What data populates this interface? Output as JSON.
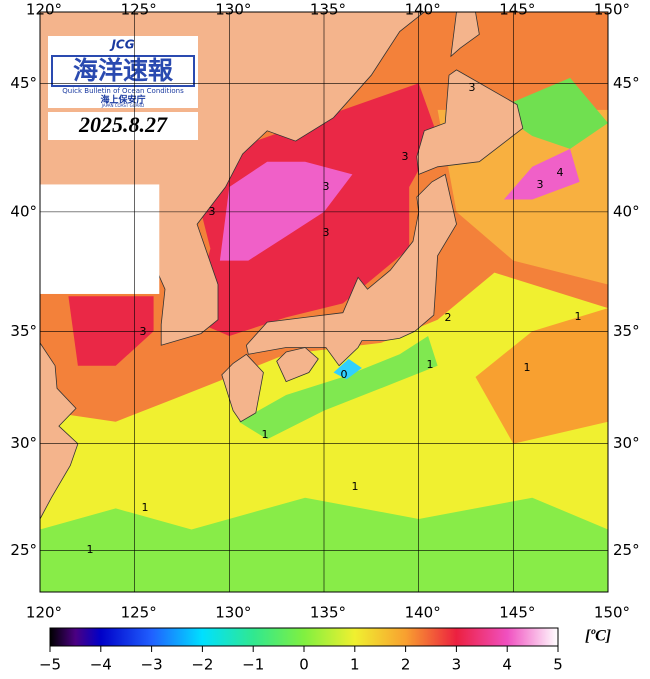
{
  "map": {
    "lon_range": [
      120,
      150
    ],
    "lat_range": [
      23,
      47.6
    ],
    "lon_ticks": [
      {
        "value": 120,
        "label": "120°"
      },
      {
        "value": 125,
        "label": "125°"
      },
      {
        "value": 130,
        "label": "130°"
      },
      {
        "value": 135,
        "label": "135°"
      },
      {
        "value": 140,
        "label": "140°"
      },
      {
        "value": 145,
        "label": "145°"
      },
      {
        "value": 150,
        "label": "150°"
      }
    ],
    "lat_ticks": [
      {
        "value": 25,
        "label": "25°"
      },
      {
        "value": 30,
        "label": "30°"
      },
      {
        "value": 35,
        "label": "35°"
      },
      {
        "value": 40,
        "label": "40°"
      },
      {
        "value": 45,
        "label": "45°"
      }
    ],
    "contour_labels": [
      "3",
      "3",
      "3",
      "3",
      "3",
      "3",
      "4",
      "3",
      "2",
      "1",
      "1",
      "1",
      "0",
      "1",
      "1",
      "1",
      "1"
    ]
  },
  "logo": {
    "mark": "JCG",
    "title": "海洋速報",
    "subtitle": "Quick Bulletin of Ocean Conditions",
    "agency": "海上保安庁",
    "agency_en": "JAPAN COAST GUARD"
  },
  "date": "2025.8.27",
  "colorbar": {
    "range": [
      -5,
      5
    ],
    "unit": "[ºC]",
    "ticks": [
      {
        "value": -5,
        "label": "−5"
      },
      {
        "value": -4,
        "label": "−4"
      },
      {
        "value": -3,
        "label": "−3"
      },
      {
        "value": -2,
        "label": "−2"
      },
      {
        "value": -1,
        "label": "−1"
      },
      0,
      1,
      2,
      3,
      4,
      5
    ]
  }
}
